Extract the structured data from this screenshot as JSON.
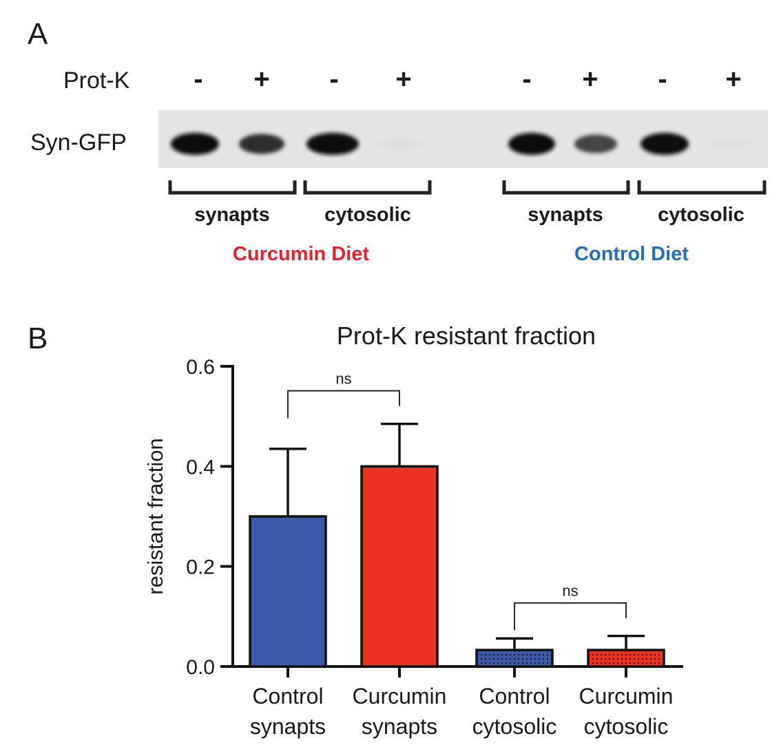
{
  "panel_a": {
    "letter": "A",
    "prot_k_label": "Prot-K",
    "prot_k_signs": [
      "-",
      "+",
      "-",
      "+",
      "-",
      "+",
      "-",
      "+"
    ],
    "row_label": "Syn-GFP",
    "band_intensities": [
      1.0,
      0.85,
      1.0,
      0.08,
      1.0,
      0.75,
      1.0,
      0.06
    ],
    "groups": [
      "synapts",
      "cytosolic",
      "synapts",
      "cytosolic"
    ],
    "diets": [
      {
        "label": "Curcumin Diet",
        "color": "#e8202a"
      },
      {
        "label": "Control Diet",
        "color": "#2271b8"
      }
    ]
  },
  "panel_b": {
    "letter": "B"
  },
  "chart_data": {
    "type": "bar",
    "title": "Prot-K resistant fraction",
    "xlabel": "",
    "ylabel": "resistant fraction",
    "ylim": [
      0,
      0.6
    ],
    "yticks": [
      "0.0",
      "0.2",
      "0.4",
      "0.6"
    ],
    "grid": false,
    "categories": [
      [
        "Control",
        "synapts"
      ],
      [
        "Curcumin",
        "synapts"
      ],
      [
        "Control",
        "cytosolic"
      ],
      [
        "Curcumin",
        "cytosolic"
      ]
    ],
    "values": [
      0.3,
      0.4,
      0.033,
      0.033
    ],
    "errors": [
      0.135,
      0.085,
      0.023,
      0.028
    ],
    "colors": [
      "#3d5aa8",
      "#ec3223",
      "#3d5aa8",
      "#ec3223"
    ],
    "patterns": [
      "solid",
      "solid",
      "dotted",
      "dotted"
    ],
    "significance": [
      {
        "from": 0,
        "to": 1,
        "label": "ns"
      },
      {
        "from": 2,
        "to": 3,
        "label": "ns"
      }
    ]
  }
}
